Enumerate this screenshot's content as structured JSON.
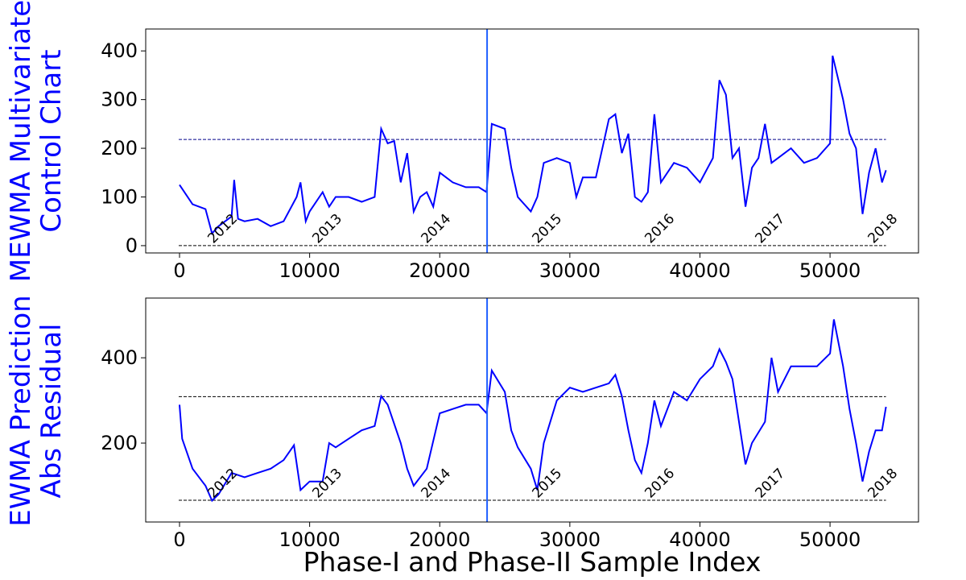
{
  "chart_data": [
    {
      "type": "line",
      "ylabel": [
        "MEWMA Multivariate",
        "Control Chart"
      ],
      "color": "#0000ff",
      "x": [
        0,
        1000,
        2000,
        2500,
        3000,
        4000,
        4200,
        4500,
        5000,
        6000,
        7000,
        8000,
        9000,
        9300,
        9700,
        10000,
        11000,
        11500,
        12000,
        13000,
        14000,
        15000,
        15500,
        16000,
        16500,
        17000,
        17500,
        18000,
        18500,
        19000,
        19500,
        20000,
        21000,
        22000,
        23000,
        23600,
        24000,
        25000,
        25500,
        26000,
        27000,
        27500,
        28000,
        29000,
        30000,
        30500,
        31000,
        32000,
        33000,
        33500,
        34000,
        34500,
        35000,
        35500,
        36000,
        36500,
        37000,
        38000,
        39000,
        40000,
        41000,
        41500,
        42000,
        42500,
        43000,
        43500,
        44000,
        44500,
        45000,
        45500,
        46000,
        47000,
        48000,
        49000,
        50000,
        50200,
        51000,
        51500,
        52000,
        52500,
        53000,
        53500,
        54000,
        54300
      ],
      "values": [
        125,
        85,
        75,
        25,
        40,
        60,
        135,
        55,
        50,
        55,
        40,
        50,
        100,
        130,
        50,
        70,
        110,
        80,
        100,
        100,
        90,
        100,
        240,
        210,
        215,
        130,
        190,
        70,
        100,
        110,
        80,
        150,
        130,
        120,
        120,
        110,
        250,
        240,
        160,
        100,
        70,
        100,
        170,
        180,
        170,
        100,
        140,
        140,
        260,
        270,
        190,
        230,
        100,
        90,
        110,
        270,
        130,
        170,
        160,
        130,
        180,
        340,
        310,
        180,
        200,
        80,
        160,
        180,
        250,
        170,
        180,
        200,
        170,
        180,
        210,
        390,
        300,
        230,
        200,
        65,
        150,
        200,
        130,
        155
      ],
      "xlim": [
        -2600,
        56800
      ],
      "ylim": [
        -15,
        445
      ],
      "xticks": [
        0,
        10000,
        20000,
        30000,
        40000,
        50000
      ],
      "yticks": [
        0,
        100,
        200,
        300,
        400
      ],
      "hlines": [
        {
          "y": 218,
          "color": "#00008b"
        },
        {
          "y": 0,
          "color": "#000000"
        }
      ],
      "vline": {
        "x": 23640,
        "color": "#1f5fff"
      },
      "annotations": [
        {
          "text": "2012",
          "x": 2600,
          "y": 0
        },
        {
          "text": "2013",
          "x": 10640,
          "y": 0
        },
        {
          "text": "2014",
          "x": 19000,
          "y": 0
        },
        {
          "text": "2015",
          "x": 27540,
          "y": 0
        },
        {
          "text": "2016",
          "x": 36200,
          "y": 0
        },
        {
          "text": "2017",
          "x": 44680,
          "y": 0
        },
        {
          "text": "2018",
          "x": 53340,
          "y": 0
        }
      ]
    },
    {
      "type": "line",
      "ylabel": [
        "EWMA Prediction",
        "Abs Residual"
      ],
      "xlabel": "Phase-I and Phase-II Sample Index",
      "color": "#0000ff",
      "x": [
        0,
        200,
        1000,
        2000,
        2500,
        3000,
        4000,
        5000,
        6000,
        7000,
        8000,
        8800,
        9300,
        10000,
        11000,
        11500,
        12000,
        13000,
        14000,
        15000,
        15500,
        16000,
        17000,
        17500,
        18000,
        19000,
        20000,
        21000,
        22000,
        23000,
        23600,
        24000,
        25000,
        25500,
        26000,
        27000,
        27500,
        28000,
        29000,
        30000,
        31000,
        32000,
        33000,
        33500,
        34000,
        34500,
        35000,
        35500,
        36000,
        36500,
        37000,
        38000,
        39000,
        40000,
        41000,
        41500,
        42000,
        42500,
        43000,
        43500,
        44000,
        45000,
        45500,
        46000,
        47000,
        48000,
        49000,
        50000,
        50300,
        51000,
        51500,
        52000,
        52500,
        53000,
        53500,
        54000,
        54300
      ],
      "values": [
        290,
        210,
        140,
        100,
        65,
        80,
        130,
        120,
        130,
        140,
        160,
        195,
        90,
        110,
        110,
        200,
        190,
        210,
        230,
        240,
        310,
        290,
        200,
        140,
        100,
        140,
        270,
        280,
        290,
        290,
        270,
        370,
        320,
        230,
        190,
        140,
        90,
        200,
        300,
        330,
        320,
        330,
        340,
        360,
        310,
        230,
        160,
        130,
        200,
        300,
        240,
        320,
        300,
        350,
        380,
        420,
        390,
        350,
        250,
        150,
        200,
        250,
        400,
        320,
        380,
        380,
        380,
        410,
        490,
        380,
        280,
        200,
        110,
        180,
        230,
        230,
        285
      ],
      "xlim": [
        -2600,
        56800
      ],
      "ylim": [
        15,
        540
      ],
      "xticks": [
        0,
        10000,
        20000,
        30000,
        40000,
        50000
      ],
      "yticks": [
        200,
        400
      ],
      "hlines": [
        {
          "y": 309,
          "color": "#000000"
        },
        {
          "y": 66,
          "color": "#000000"
        }
      ],
      "vline": {
        "x": 23640,
        "color": "#1f5fff"
      },
      "annotations": [
        {
          "text": "2012",
          "x": 2600,
          "y": 66
        },
        {
          "text": "2013",
          "x": 10640,
          "y": 66
        },
        {
          "text": "2014",
          "x": 19000,
          "y": 66
        },
        {
          "text": "2015",
          "x": 27540,
          "y": 66
        },
        {
          "text": "2016",
          "x": 36200,
          "y": 66
        },
        {
          "text": "2017",
          "x": 44680,
          "y": 66
        },
        {
          "text": "2018",
          "x": 53340,
          "y": 66
        }
      ]
    }
  ]
}
